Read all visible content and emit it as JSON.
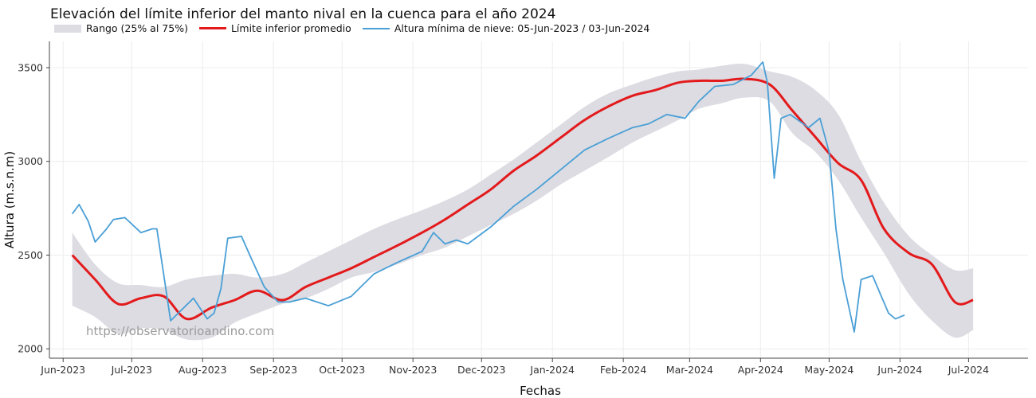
{
  "chart_data": {
    "type": "line",
    "title": "Elevación del límite inferior del manto nival en la cuenca para el año 2024",
    "xlabel": "Fechas",
    "ylabel": "Altura (m.s.n.m)",
    "watermark": "https://observatorioandino.com",
    "x_range": [
      "2023-05-26",
      "2024-07-27"
    ],
    "ylim": [
      1950,
      3640
    ],
    "y_ticks": [
      2000,
      2500,
      3000,
      3500
    ],
    "x_ticks": [
      {
        "date": "2023-06-01",
        "label": "Jun-2023"
      },
      {
        "date": "2023-07-01",
        "label": "Jul-2023"
      },
      {
        "date": "2023-08-01",
        "label": "Aug-2023"
      },
      {
        "date": "2023-09-01",
        "label": "Sep-2023"
      },
      {
        "date": "2023-10-01",
        "label": "Oct-2023"
      },
      {
        "date": "2023-11-01",
        "label": "Nov-2023"
      },
      {
        "date": "2023-12-01",
        "label": "Dec-2023"
      },
      {
        "date": "2024-01-01",
        "label": "Jan-2024"
      },
      {
        "date": "2024-02-01",
        "label": "Feb-2024"
      },
      {
        "date": "2024-03-01",
        "label": "Mar-2024"
      },
      {
        "date": "2024-04-01",
        "label": "Apr-2024"
      },
      {
        "date": "2024-05-01",
        "label": "May-2024"
      },
      {
        "date": "2024-06-01",
        "label": "Jun-2024"
      },
      {
        "date": "2024-07-01",
        "label": "Jul-2024"
      }
    ],
    "grid": true,
    "legend_position": "top-left",
    "colors": {
      "band": "#dcdce2",
      "mean": "#e31a1c",
      "observed": "#4a9fd6"
    },
    "series": [
      {
        "name": "Rango (25% al 75%)",
        "kind": "band",
        "x": [
          "2023-06-05",
          "2023-06-15",
          "2023-06-25",
          "2023-07-05",
          "2023-07-15",
          "2023-07-25",
          "2023-08-05",
          "2023-08-15",
          "2023-08-25",
          "2023-09-05",
          "2023-09-15",
          "2023-09-25",
          "2023-10-05",
          "2023-10-15",
          "2023-10-25",
          "2023-11-05",
          "2023-11-15",
          "2023-11-25",
          "2023-12-05",
          "2023-12-15",
          "2023-12-25",
          "2024-01-05",
          "2024-01-15",
          "2024-01-25",
          "2024-02-05",
          "2024-02-15",
          "2024-02-25",
          "2024-03-05",
          "2024-03-15",
          "2024-03-25",
          "2024-04-05",
          "2024-04-15",
          "2024-04-25",
          "2024-05-05",
          "2024-05-15",
          "2024-05-25",
          "2024-06-05",
          "2024-06-15",
          "2024-06-25",
          "2024-07-03"
        ],
        "low": [
          2230,
          2170,
          2080,
          2110,
          2100,
          2050,
          2060,
          2140,
          2190,
          2240,
          2270,
          2320,
          2380,
          2410,
          2450,
          2500,
          2540,
          2600,
          2660,
          2720,
          2790,
          2880,
          2950,
          3020,
          3100,
          3160,
          3220,
          3280,
          3310,
          3340,
          3320,
          3150,
          3050,
          2900,
          2700,
          2510,
          2290,
          2150,
          2060,
          2100
        ],
        "high": [
          2620,
          2450,
          2350,
          2340,
          2330,
          2370,
          2390,
          2400,
          2380,
          2400,
          2460,
          2520,
          2580,
          2640,
          2690,
          2740,
          2790,
          2850,
          2930,
          3010,
          3100,
          3200,
          3290,
          3360,
          3410,
          3450,
          3480,
          3490,
          3510,
          3520,
          3480,
          3450,
          3380,
          3250,
          3000,
          2780,
          2600,
          2500,
          2420,
          2430
        ]
      },
      {
        "name": "Límite inferior promedio",
        "kind": "line",
        "x": [
          "2023-06-05",
          "2023-06-15",
          "2023-06-25",
          "2023-07-05",
          "2023-07-15",
          "2023-07-25",
          "2023-08-05",
          "2023-08-15",
          "2023-08-25",
          "2023-09-05",
          "2023-09-15",
          "2023-09-25",
          "2023-10-05",
          "2023-10-15",
          "2023-10-25",
          "2023-11-05",
          "2023-11-15",
          "2023-11-25",
          "2023-12-05",
          "2023-12-15",
          "2023-12-25",
          "2024-01-05",
          "2024-01-15",
          "2024-01-25",
          "2024-02-05",
          "2024-02-15",
          "2024-02-25",
          "2024-03-05",
          "2024-03-15",
          "2024-03-25",
          "2024-04-05",
          "2024-04-15",
          "2024-04-25",
          "2024-05-05",
          "2024-05-15",
          "2024-05-25",
          "2024-06-05",
          "2024-06-15",
          "2024-06-25",
          "2024-07-03"
        ],
        "y": [
          2500,
          2370,
          2240,
          2270,
          2280,
          2160,
          2220,
          2260,
          2310,
          2260,
          2330,
          2380,
          2430,
          2490,
          2550,
          2620,
          2690,
          2770,
          2850,
          2950,
          3030,
          3130,
          3220,
          3290,
          3350,
          3380,
          3420,
          3430,
          3430,
          3440,
          3410,
          3270,
          3130,
          2990,
          2900,
          2640,
          2510,
          2450,
          2250,
          2260
        ]
      },
      {
        "name": "Altura mínima de nieve: 05-Jun-2023 / 03-Jun-2024",
        "kind": "line",
        "x": [
          "2023-06-05",
          "2023-06-08",
          "2023-06-12",
          "2023-06-15",
          "2023-06-20",
          "2023-06-23",
          "2023-06-28",
          "2023-07-05",
          "2023-07-10",
          "2023-07-12",
          "2023-07-18",
          "2023-07-28",
          "2023-08-03",
          "2023-08-06",
          "2023-08-09",
          "2023-08-12",
          "2023-08-18",
          "2023-08-22",
          "2023-08-28",
          "2023-09-03",
          "2023-09-08",
          "2023-09-15",
          "2023-09-25",
          "2023-10-05",
          "2023-10-15",
          "2023-10-25",
          "2023-11-05",
          "2023-11-10",
          "2023-11-15",
          "2023-11-20",
          "2023-11-25",
          "2023-12-05",
          "2023-12-15",
          "2023-12-25",
          "2024-01-05",
          "2024-01-15",
          "2024-01-25",
          "2024-02-05",
          "2024-02-12",
          "2024-02-20",
          "2024-02-28",
          "2024-03-05",
          "2024-03-12",
          "2024-03-20",
          "2024-03-28",
          "2024-04-02",
          "2024-04-04",
          "2024-04-07",
          "2024-04-10",
          "2024-04-14",
          "2024-04-22",
          "2024-04-27",
          "2024-05-01",
          "2024-05-04",
          "2024-05-07",
          "2024-05-12",
          "2024-05-15",
          "2024-05-20",
          "2024-05-27",
          "2024-05-30",
          "2024-06-03"
        ],
        "y": [
          2720,
          2770,
          2680,
          2570,
          2640,
          2690,
          2700,
          2620,
          2640,
          2640,
          2150,
          2270,
          2160,
          2190,
          2320,
          2590,
          2600,
          2490,
          2330,
          2250,
          2250,
          2270,
          2230,
          2280,
          2400,
          2460,
          2520,
          2620,
          2560,
          2580,
          2560,
          2650,
          2760,
          2850,
          2960,
          3060,
          3120,
          3180,
          3200,
          3250,
          3230,
          3320,
          3400,
          3410,
          3460,
          3530,
          3420,
          2910,
          3230,
          3250,
          3180,
          3230,
          3050,
          2640,
          2370,
          2090,
          2370,
          2390,
          2190,
          2160,
          2180
        ]
      }
    ]
  }
}
